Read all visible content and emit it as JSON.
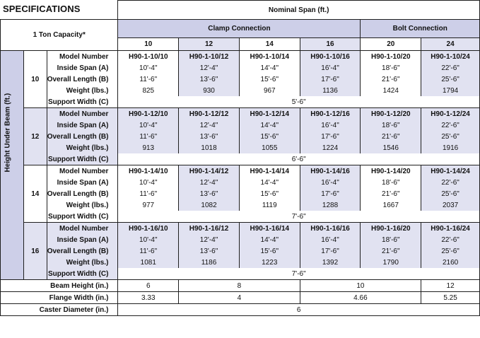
{
  "title": "SPECIFICATIONS",
  "capacity": "1 Ton Capacity*",
  "nominal_span_label": "Nominal Span (ft.)",
  "height_label": "Height Under Beam (ft.)",
  "clamp_label": "Clamp Connection",
  "bolt_label": "Bolt Connection",
  "spans": [
    "10",
    "12",
    "14",
    "16",
    "20",
    "24"
  ],
  "row_labels": {
    "model": "Model Number",
    "inside": "Inside Span (A)",
    "overall": "Overall Length (B)",
    "weight": "Weight (lbs.)",
    "support": "Support Width (C)"
  },
  "groups": [
    {
      "height": "10",
      "models": [
        "H90-1-10/10",
        "H90-1-10/12",
        "H90-1-10/14",
        "H90-1-10/16",
        "H90-1-10/20",
        "H90-1-10/24"
      ],
      "inside": [
        "10'-4\"",
        "12'-4\"",
        "14'-4\"",
        "16'-4\"",
        "18'-6\"",
        "22'-6\""
      ],
      "overall": [
        "11'-6\"",
        "13'-6\"",
        "15'-6\"",
        "17'-6\"",
        "21'-6\"",
        "25'-6\""
      ],
      "weight": [
        "825",
        "930",
        "967",
        "1136",
        "1424",
        "1794"
      ],
      "support": "5'-6\""
    },
    {
      "height": "12",
      "models": [
        "H90-1-12/10",
        "H90-1-12/12",
        "H90-1-12/14",
        "H90-1-12/16",
        "H90-1-12/20",
        "H90-1-12/24"
      ],
      "inside": [
        "10'-4\"",
        "12'-4\"",
        "14'-4\"",
        "16'-4\"",
        "18'-6\"",
        "22'-6\""
      ],
      "overall": [
        "11'-6\"",
        "13'-6\"",
        "15'-6\"",
        "17'-6\"",
        "21'-6\"",
        "25'-6\""
      ],
      "weight": [
        "913",
        "1018",
        "1055",
        "1224",
        "1546",
        "1916"
      ],
      "support": "6'-6\""
    },
    {
      "height": "14",
      "models": [
        "H90-1-14/10",
        "H90-1-14/12",
        "H90-1-14/14",
        "H90-1-14/16",
        "H90-1-14/20",
        "H90-1-14/24"
      ],
      "inside": [
        "10'-4\"",
        "12'-4\"",
        "14'-4\"",
        "16'-4\"",
        "18'-6\"",
        "22'-6\""
      ],
      "overall": [
        "11'-6\"",
        "13'-6\"",
        "15'-6\"",
        "17'-6\"",
        "21'-6\"",
        "25'-6\""
      ],
      "weight": [
        "977",
        "1082",
        "1119",
        "1288",
        "1667",
        "2037"
      ],
      "support": "7'-6\""
    },
    {
      "height": "16",
      "models": [
        "H90-1-16/10",
        "H90-1-16/12",
        "H90-1-16/14",
        "H90-1-16/16",
        "H90-1-16/20",
        "H90-1-16/24"
      ],
      "inside": [
        "10'-4\"",
        "12'-4\"",
        "14'-4\"",
        "16'-4\"",
        "18'-6\"",
        "22'-6\""
      ],
      "overall": [
        "11'-6\"",
        "13'-6\"",
        "15'-6\"",
        "17'-6\"",
        "21'-6\"",
        "25'-6\""
      ],
      "weight": [
        "1081",
        "1186",
        "1223",
        "1392",
        "1790",
        "2160"
      ],
      "support": "7'-6\""
    }
  ],
  "footer": {
    "beam_height_label": "Beam Height (in.)",
    "beam_height": [
      "6",
      "8",
      "10",
      "12"
    ],
    "flange_width_label": "Flange Width (in.)",
    "flange_width": [
      "3.33",
      "4",
      "4.66",
      "5.25"
    ],
    "caster_label": "Caster Diameter (in.)",
    "caster": "6"
  },
  "colors": {
    "header_band": "#cdcfe8",
    "shaded_column": "#e1e2f1",
    "border": "#1f1f1f"
  }
}
